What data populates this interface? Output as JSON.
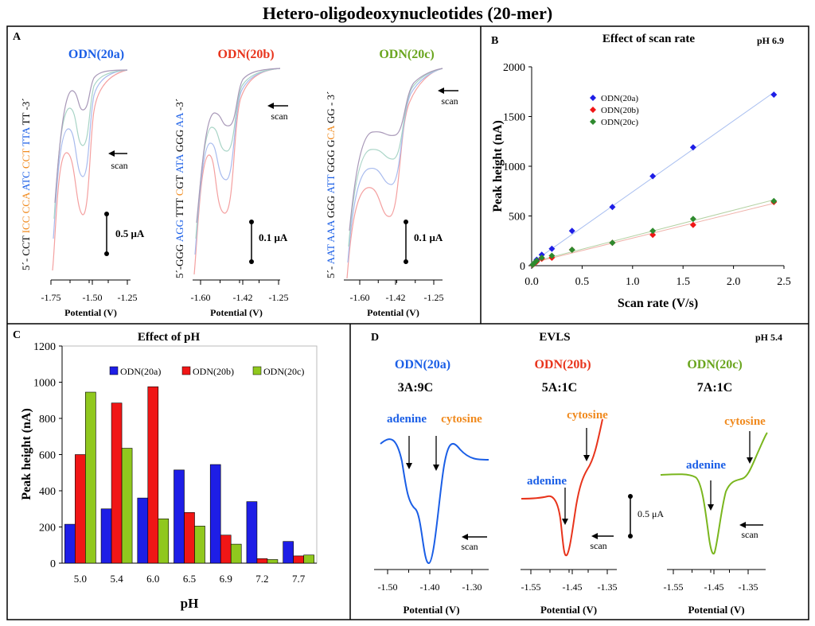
{
  "title": "Hetero-oligodeoxynucleotides   (20-mer)",
  "colors": {
    "a": "#1a5ee6",
    "b": "#e8341c",
    "c": "#6aa51e",
    "orange": "#f08a1e",
    "bar_a": "#1e1ee6",
    "bar_b": "#f01616",
    "bar_c": "#90c81e"
  },
  "panelA": {
    "letter": "A",
    "xlabel": "Potential (V)",
    "scan_label": "scan",
    "subplots": [
      {
        "name": "ODN(20a)",
        "sequence": [
          [
            "5´- CCT ",
            "#000"
          ],
          [
            "ICC CCA ",
            "#f08a1e"
          ],
          [
            "ATC ",
            "#1a5ee6"
          ],
          [
            "CCT ",
            "#f08a1e"
          ],
          [
            "TTA ",
            "#1a5ee6"
          ],
          [
            "TT -3´",
            "#000"
          ]
        ],
        "scale_bar": "0.5 μA",
        "ticks": [
          "-1.75",
          "-1.50",
          "-1.25"
        ]
      },
      {
        "name": "ODN(20b)",
        "sequence": [
          [
            "5´-GGG ",
            "#000"
          ],
          [
            "AGG ",
            "#1a5ee6"
          ],
          [
            "TTT ",
            "#000"
          ],
          [
            "C",
            "#f08a1e"
          ],
          [
            "GT ",
            "#000"
          ],
          [
            "ATA ",
            "#1a5ee6"
          ],
          [
            "GGG ",
            "#000"
          ],
          [
            "AA ",
            "#1a5ee6"
          ],
          [
            "-3´",
            "#000"
          ]
        ],
        "scale_bar": "0.1 μA",
        "ticks": [
          "-1.60",
          "-1.42",
          "-1.25"
        ]
      },
      {
        "name": "ODN(20c)",
        "sequence": [
          [
            "5´- ",
            "#000"
          ],
          [
            "AAT AAA ",
            "#1a5ee6"
          ],
          [
            "GGG ",
            "#000"
          ],
          [
            "ATT ",
            "#1a5ee6"
          ],
          [
            "GGG G",
            "#000"
          ],
          [
            "CA ",
            "#f08a1e"
          ],
          [
            "GG - 3´",
            "#000"
          ]
        ],
        "scale_bar": "0.1 μA",
        "ticks": [
          "-1.60",
          "-1.42",
          "-1.25"
        ]
      }
    ]
  },
  "panelB": {
    "letter": "B",
    "condition": "pH 6.9"
  },
  "panelC": {
    "letter": "C"
  },
  "panelD": {
    "letter": "D",
    "title": "EVLS",
    "condition": "pH 5.4",
    "xlabel": "Potential (V)",
    "scan_label": "scan",
    "scale_bar": "0.5 μA",
    "adenine_label": "adenine",
    "cytosine_label": "cytosine",
    "subplots": [
      {
        "name": "ODN(20a)",
        "ratio": "3A:9C",
        "ticks": [
          "-1.50",
          "-1.40",
          "-1.30"
        ]
      },
      {
        "name": "ODN(20b)",
        "ratio": "5A:1C",
        "ticks": [
          "-1.55",
          "-1.45",
          "-1.35"
        ]
      },
      {
        "name": "ODN(20c)",
        "ratio": "7A:1C",
        "ticks": [
          "-1.55",
          "-1.45",
          "-1.35"
        ]
      }
    ]
  },
  "chart_data": [
    {
      "type": "scatter",
      "title": "Effect of scan rate",
      "xlabel": "Scan rate (V/s)",
      "ylabel": "Peak height (nA)",
      "xlim": [
        0,
        2.5
      ],
      "ylim": [
        0,
        2000
      ],
      "xticks": [
        "0.0",
        "0.5",
        "1.0",
        "1.5",
        "2.0",
        "2.5"
      ],
      "yticks": [
        "0",
        "500",
        "1000",
        "1500",
        "2000"
      ],
      "legend_position": "upper-left",
      "series": [
        {
          "name": "ODN(20a)",
          "color": "#1e1ee6",
          "line_color": "#a9bff0",
          "x": [
            0.01,
            0.025,
            0.05,
            0.1,
            0.2,
            0.4,
            0.8,
            1.2,
            1.6,
            2.4
          ],
          "y": [
            10,
            25,
            60,
            110,
            170,
            350,
            590,
            900,
            1190,
            1720
          ]
        },
        {
          "name": "ODN(20b)",
          "color": "#f01616",
          "line_color": "#f0b4ac",
          "x": [
            0.01,
            0.025,
            0.05,
            0.1,
            0.2,
            0.4,
            0.8,
            1.2,
            1.6,
            2.4
          ],
          "y": [
            8,
            20,
            40,
            70,
            80,
            160,
            230,
            310,
            410,
            640
          ]
        },
        {
          "name": "ODN(20c)",
          "color": "#2e8a2e",
          "line_color": "#b4d2a4",
          "x": [
            0.01,
            0.025,
            0.05,
            0.1,
            0.2,
            0.4,
            0.8,
            1.2,
            1.6,
            2.4
          ],
          "y": [
            10,
            25,
            50,
            80,
            100,
            160,
            230,
            350,
            470,
            650
          ]
        }
      ]
    },
    {
      "type": "bar",
      "title": "Effect of pH",
      "xlabel": "pH",
      "ylabel": "Peak height (nA)",
      "ylim": [
        0,
        1200
      ],
      "yticks": [
        "0",
        "200",
        "400",
        "600",
        "800",
        "1000",
        "1200"
      ],
      "categories": [
        "5.0",
        "5.4",
        "6.0",
        "6.5",
        "6.9",
        "7.2",
        "7.7"
      ],
      "legend_position": "top",
      "series": [
        {
          "name": "ODN(20a)",
          "color": "#1e1ee6",
          "values": [
            215,
            300,
            360,
            515,
            545,
            340,
            120
          ]
        },
        {
          "name": "ODN(20b)",
          "color": "#f01616",
          "values": [
            600,
            885,
            975,
            280,
            155,
            25,
            40
          ]
        },
        {
          "name": "ODN(20c)",
          "color": "#90c81e",
          "values": [
            945,
            635,
            245,
            205,
            105,
            20,
            45
          ]
        }
      ]
    }
  ]
}
